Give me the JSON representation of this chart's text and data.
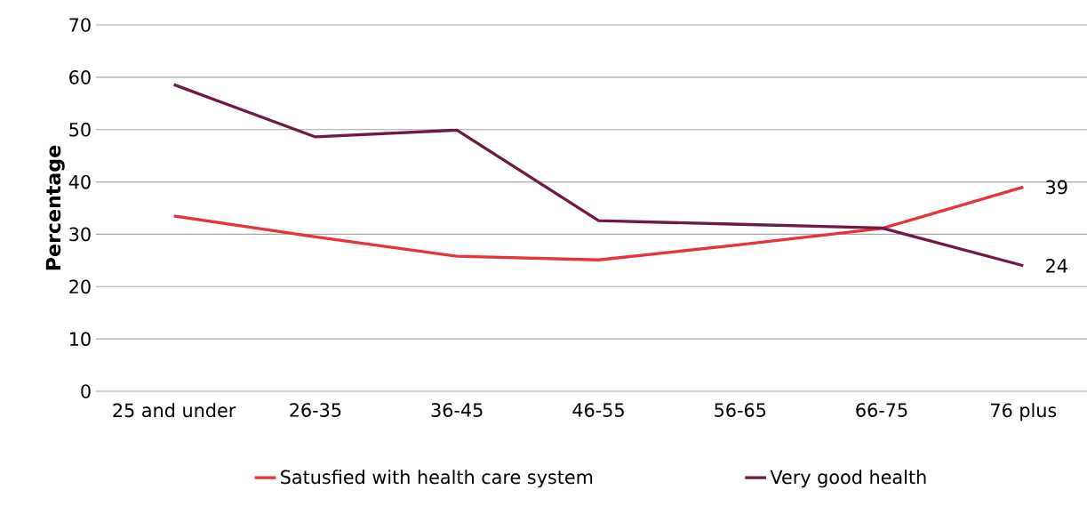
{
  "chart_data": {
    "type": "line",
    "ylabel": "Percentage",
    "categories": [
      "25 and under",
      "26-35",
      "36-45",
      "46-55",
      "56-65",
      "66-75",
      "76 plus"
    ],
    "series": [
      {
        "name": "Satusfied with health care system",
        "color": "#e8323c",
        "values": [
          33.5,
          29.5,
          25.8,
          25.1,
          28,
          31.1,
          39
        ],
        "value_labels": [
          null,
          null,
          null,
          null,
          null,
          null,
          "39"
        ]
      },
      {
        "name": "Very good health",
        "color": "#6e1a45",
        "values": [
          58.6,
          48.6,
          49.9,
          32.6,
          31.9,
          31.2,
          24
        ],
        "value_labels": [
          null,
          null,
          null,
          null,
          null,
          null,
          "24"
        ]
      }
    ],
    "ylim": [
      0,
      70
    ],
    "yticks": [
      0,
      10,
      20,
      30,
      40,
      50,
      60,
      70
    ],
    "grid": "y",
    "legend": "bottom",
    "marker": "none",
    "line_style": "solid"
  }
}
